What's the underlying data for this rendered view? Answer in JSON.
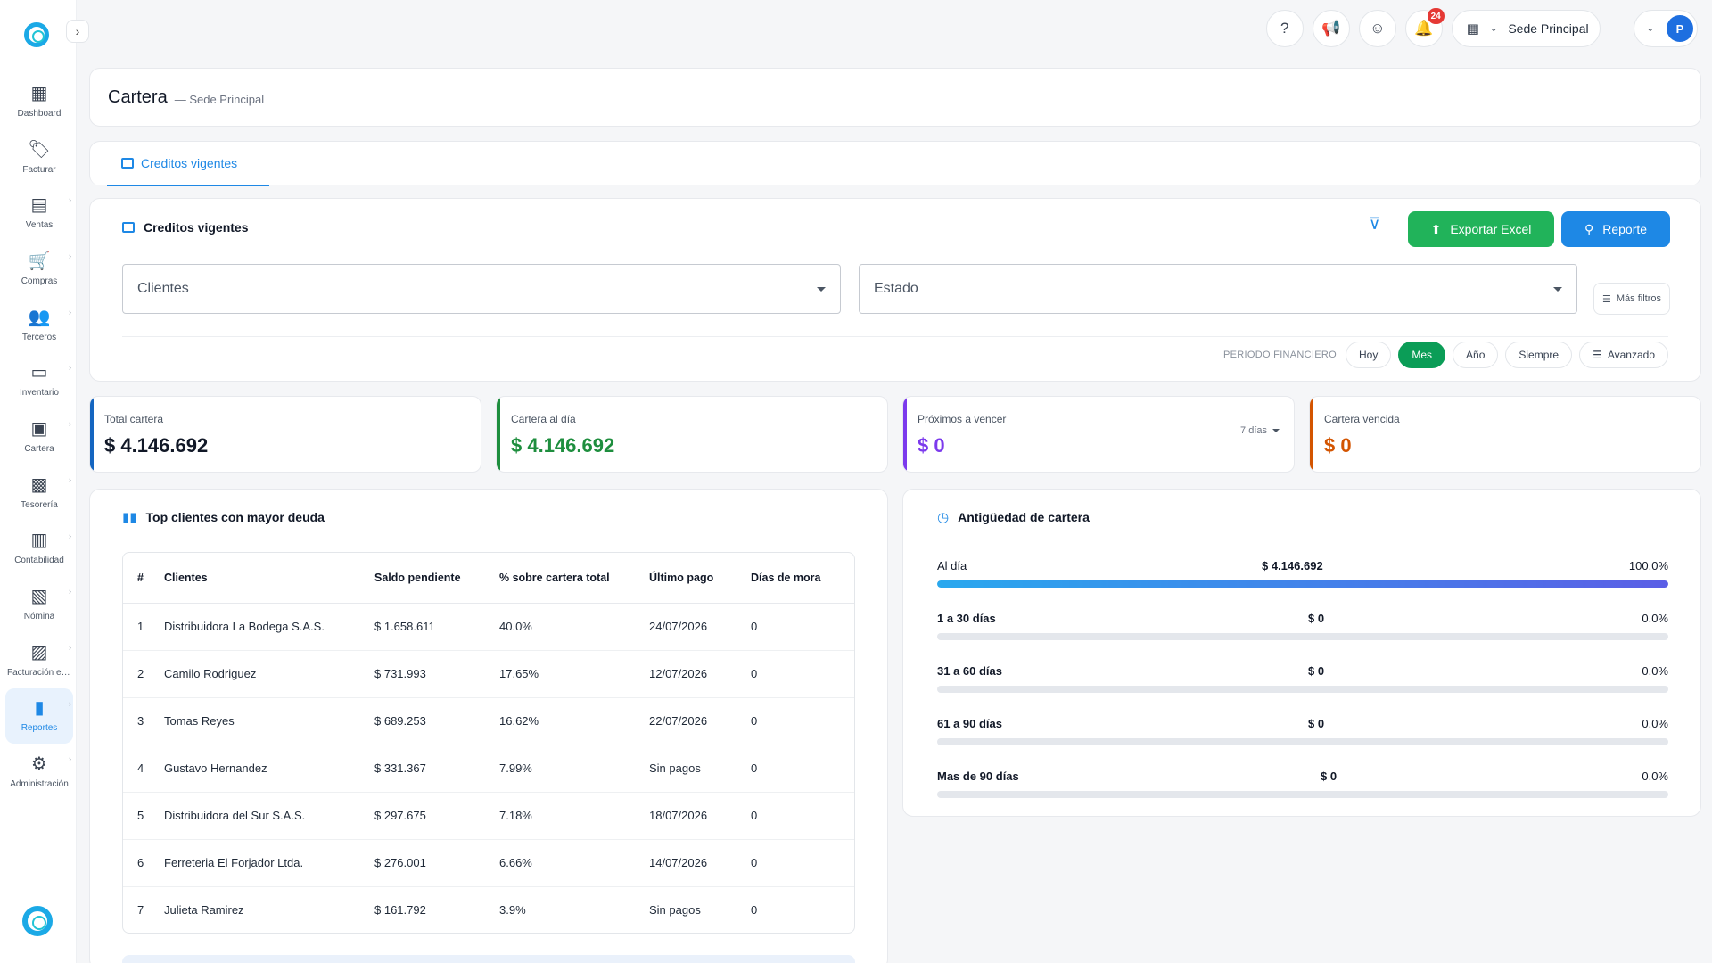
{
  "sidebar": {
    "items": [
      {
        "label": "Dashboard",
        "icon": "dashboard-icon",
        "glyph": "▦",
        "chevron": false
      },
      {
        "label": "Facturar",
        "icon": "tag-icon",
        "glyph": "🏷",
        "chevron": false
      },
      {
        "label": "Ventas",
        "icon": "register-icon",
        "glyph": "▤",
        "chevron": true
      },
      {
        "label": "Compras",
        "icon": "cart-icon",
        "glyph": "🛒",
        "chevron": true
      },
      {
        "label": "Terceros",
        "icon": "people-icon",
        "glyph": "👥",
        "chevron": true
      },
      {
        "label": "Inventario",
        "icon": "archive-icon",
        "glyph": "▭",
        "chevron": true
      },
      {
        "label": "Cartera",
        "icon": "wallet-icon",
        "glyph": "▣",
        "chevron": true
      },
      {
        "label": "Tesorería",
        "icon": "cash-icon",
        "glyph": "▩",
        "chevron": true
      },
      {
        "label": "Contabilidad",
        "icon": "ledger-icon",
        "glyph": "▥",
        "chevron": true
      },
      {
        "label": "Nómina",
        "icon": "briefcase-icon",
        "glyph": "▧",
        "chevron": true
      },
      {
        "label": "Facturación electrónica",
        "icon": "invoice-check-icon",
        "glyph": "▨",
        "chevron": true
      },
      {
        "label": "Reportes",
        "icon": "chart-icon",
        "glyph": "▮",
        "chevron": true,
        "active": true
      },
      {
        "label": "Administración",
        "icon": "gear-icon",
        "glyph": "⚙",
        "chevron": true
      }
    ]
  },
  "topbar": {
    "notifications_count": "24",
    "sede_label": "Sede Principal",
    "avatar_letter": "P"
  },
  "header": {
    "title": "Cartera",
    "subtitle": "— Sede Principal"
  },
  "tabs": [
    {
      "label": "Creditos vigentes"
    }
  ],
  "filters": {
    "section_title": "Creditos vigentes",
    "export_label": "Exportar Excel",
    "report_label": "Reporte",
    "clients_placeholder": "Clientes",
    "status_placeholder": "Estado",
    "more_filters_label": "Más filtros",
    "period_label": "PERIODO FINANCIERO",
    "periods": [
      {
        "label": "Hoy",
        "active": false
      },
      {
        "label": "Mes",
        "active": true
      },
      {
        "label": "Año",
        "active": false
      },
      {
        "label": "Siempre",
        "active": false
      }
    ],
    "advanced_label": "Avanzado"
  },
  "kpis": [
    {
      "label": "Total cartera",
      "value": "$ 4.146.692",
      "color": "#1565c0"
    },
    {
      "label": "Cartera al día",
      "value": "$ 4.146.692",
      "color": "#1e8e3e"
    },
    {
      "label": "Próximos a vencer",
      "value": "$ 0",
      "color": "#7c3aed",
      "days": "7 días"
    },
    {
      "label": "Cartera vencida",
      "value": "$ 0",
      "color": "#d35400"
    }
  ],
  "top_clients": {
    "title": "Top clientes con mayor deuda",
    "columns": [
      "#",
      "Clientes",
      "Saldo pendiente",
      "% sobre cartera total",
      "Último pago",
      "Días de mora"
    ],
    "rows": [
      [
        "1",
        "Distribuidora La Bodega S.A.S.",
        "$ 1.658.611",
        "40.0%",
        "24/07/2026",
        "0"
      ],
      [
        "2",
        "Camilo Rodriguez",
        "$ 731.993",
        "17.65%",
        "12/07/2026",
        "0"
      ],
      [
        "3",
        "Tomas Reyes",
        "$ 689.253",
        "16.62%",
        "22/07/2026",
        "0"
      ],
      [
        "4",
        "Gustavo Hernandez",
        "$ 331.367",
        "7.99%",
        "Sin pagos",
        "0"
      ],
      [
        "5",
        "Distribuidora del Sur S.A.S.",
        "$ 297.675",
        "7.18%",
        "18/07/2026",
        "0"
      ],
      [
        "6",
        "Ferreteria El Forjador Ltda.",
        "$ 276.001",
        "6.66%",
        "14/07/2026",
        "0"
      ],
      [
        "7",
        "Julieta Ramirez",
        "$ 161.792",
        "3.9%",
        "Sin pagos",
        "0"
      ]
    ]
  },
  "aging": {
    "title": "Antigüedad de cartera",
    "rows": [
      {
        "label": "Al día",
        "amount": "$ 4.146.692",
        "percent": "100.0%",
        "fraction": 1.0
      },
      {
        "label": "1 a 30 días",
        "amount": "$ 0",
        "percent": "0.0%",
        "fraction": 0
      },
      {
        "label": "31 a 60 días",
        "amount": "$ 0",
        "percent": "0.0%",
        "fraction": 0
      },
      {
        "label": "61 a 90 días",
        "amount": "$ 0",
        "percent": "0.0%",
        "fraction": 0
      },
      {
        "label": "Mas de 90 días",
        "amount": "$ 0",
        "percent": "0.0%",
        "fraction": 0
      }
    ]
  }
}
